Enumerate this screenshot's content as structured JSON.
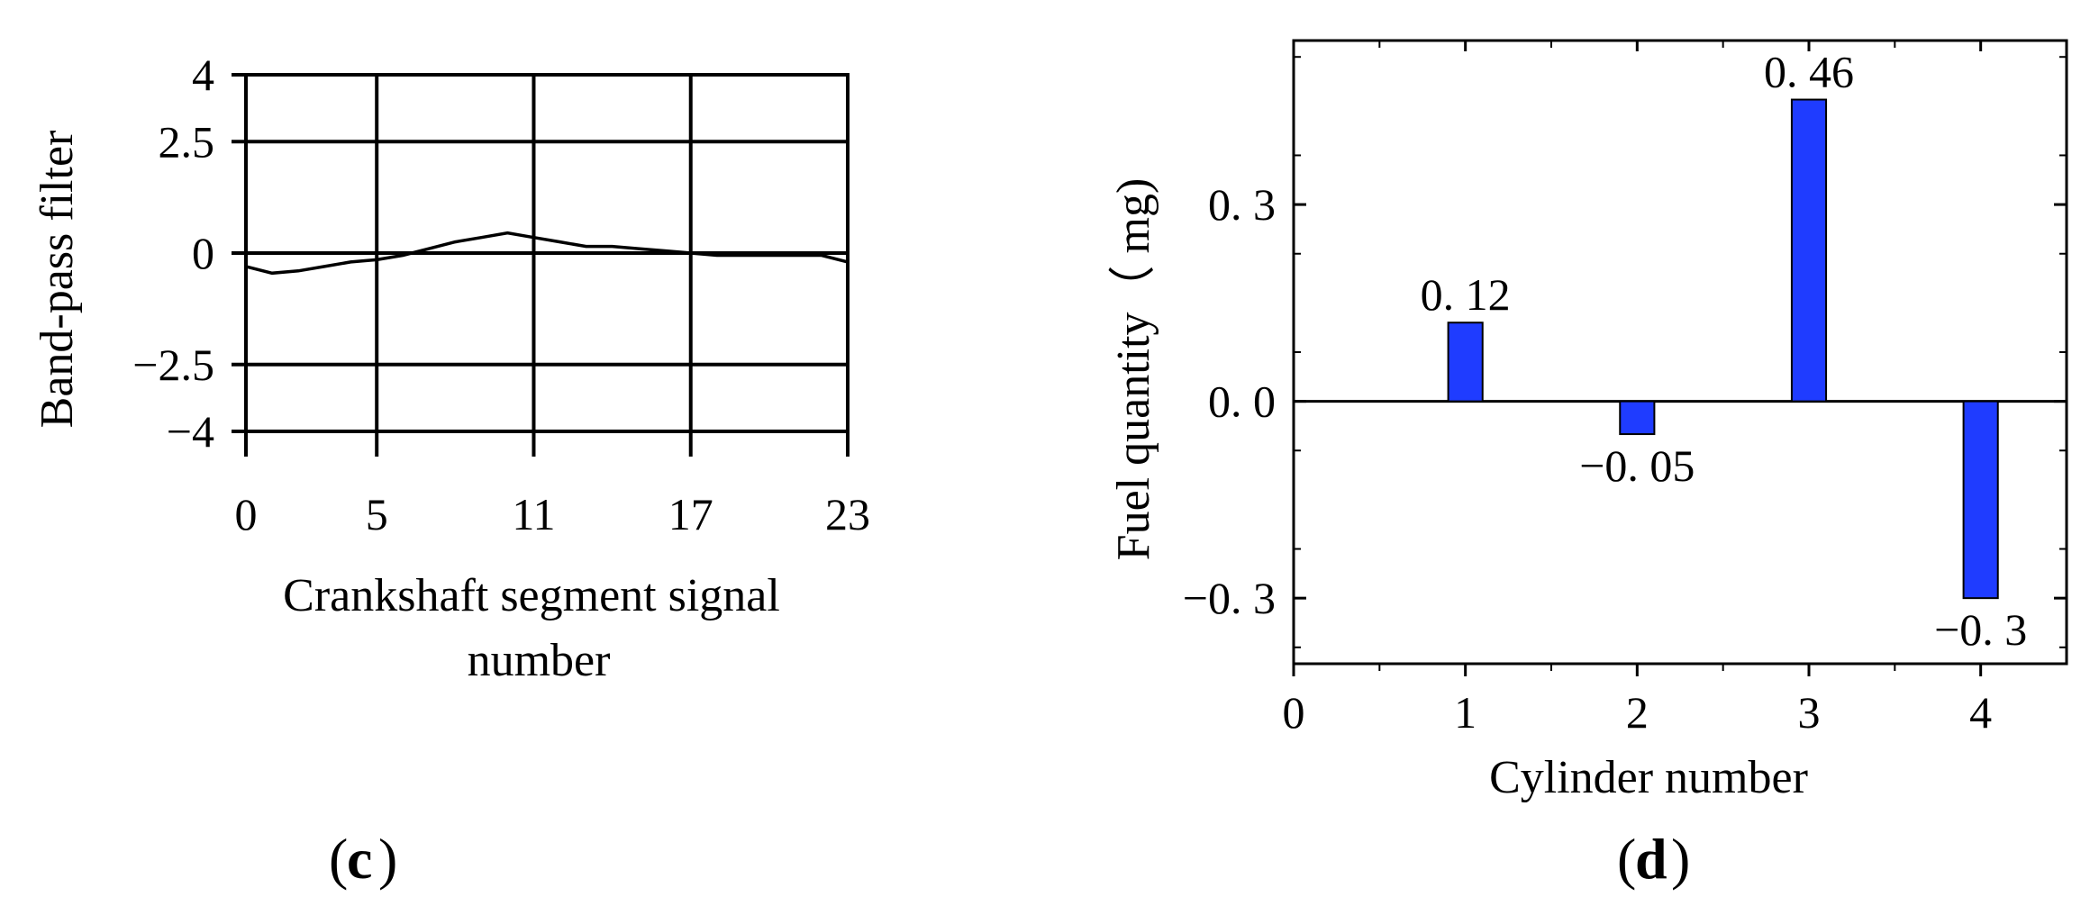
{
  "chart_data": [
    {
      "type": "line",
      "panel_label": "c",
      "xlabel_lines": [
        "Crankshaft segment signal",
        "number"
      ],
      "ylabel": "Band-pass filter",
      "xlim": [
        0,
        23
      ],
      "ylim": [
        -4,
        4
      ],
      "x_ticks": [
        0,
        5,
        11,
        17,
        23
      ],
      "x_tick_labels": [
        "0",
        "5",
        "11",
        "17",
        "23"
      ],
      "y_ticks": [
        4,
        2.5,
        0,
        -2.5,
        -4
      ],
      "y_tick_labels": [
        "4",
        "2.5",
        "0",
        "−2.5",
        "−4"
      ],
      "grid": true,
      "series": [
        {
          "x": [
            0,
            1,
            2,
            3,
            4,
            5,
            6,
            7,
            8,
            9,
            10,
            11,
            12,
            13,
            14,
            15,
            16,
            17,
            18,
            19,
            20,
            21,
            22,
            23
          ],
          "y": [
            -0.3,
            -0.45,
            -0.4,
            -0.3,
            -0.2,
            -0.15,
            -0.05,
            0.1,
            0.25,
            0.35,
            0.45,
            0.35,
            0.25,
            0.15,
            0.15,
            0.1,
            0.05,
            0.0,
            -0.05,
            -0.05,
            -0.05,
            -0.05,
            -0.05,
            -0.2
          ],
          "color": "#000000"
        }
      ]
    },
    {
      "type": "bar",
      "panel_label": "d",
      "xlabel": "Cylinder number",
      "ylabel": "Fuel quantity（ mg)",
      "xlim": [
        0,
        4.5
      ],
      "ylim": [
        -0.4,
        0.55
      ],
      "x_ticks": [
        0,
        1,
        2,
        3,
        4
      ],
      "x_tick_labels": [
        "0",
        "1",
        "2",
        "3",
        "4"
      ],
      "y_ticks": [
        0.3,
        0.0,
        -0.3
      ],
      "y_tick_labels": [
        "0. 3",
        "0. 0",
        "−0. 3"
      ],
      "categories": [
        1,
        2,
        3,
        4
      ],
      "values": [
        0.12,
        -0.05,
        0.46,
        -0.3
      ],
      "data_labels": [
        "0. 12",
        "−0. 05",
        "0. 46",
        "−0. 3"
      ],
      "bar_color": "#1f3cff",
      "grid": false
    }
  ]
}
